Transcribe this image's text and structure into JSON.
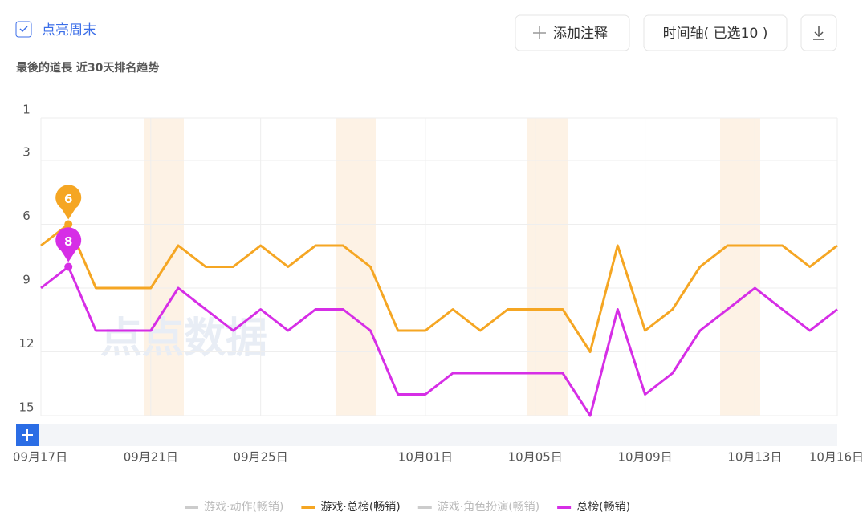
{
  "header": {
    "toggle": "点亮周末",
    "buttons": [
      "添加注释",
      "时间轴( 已选10 )"
    ]
  },
  "watermark": "点点数据",
  "chart_data": {
    "type": "line",
    "subtitle": "最後的道長 近30天排名趋势",
    "categories": [
      "09月17日",
      null,
      null,
      null,
      "09月21日",
      null,
      null,
      null,
      "09月25日",
      null,
      null,
      null,
      null,
      null,
      "10月01日",
      null,
      null,
      null,
      "10月05日",
      null,
      null,
      null,
      "10月09日",
      null,
      null,
      null,
      "10月13日",
      null,
      null,
      "10月16日"
    ],
    "series": [
      {
        "name": "游戏·动作(畅销)",
        "color": "#cccccc",
        "hidden": true,
        "values": [
          null,
          null,
          null,
          null,
          null,
          null,
          null,
          null,
          null,
          null,
          null,
          null,
          null,
          null,
          null,
          null,
          null,
          null,
          null,
          null,
          null,
          null,
          null,
          null,
          null,
          null,
          null,
          null,
          null,
          null
        ]
      },
      {
        "name": "游戏·总榜(畅销)",
        "color": "#f5a623",
        "values": [
          7,
          6,
          9,
          9,
          9,
          7,
          8,
          8,
          7,
          8,
          7,
          7,
          8,
          11,
          11,
          10,
          11,
          10,
          10,
          10,
          12,
          7,
          11,
          10,
          8,
          7,
          7,
          7,
          8,
          7
        ]
      },
      {
        "name": "游戏·角色扮演(畅销)",
        "color": "#cccccc",
        "hidden": true,
        "values": [
          null,
          null,
          null,
          null,
          null,
          null,
          null,
          null,
          null,
          null,
          null,
          null,
          null,
          null,
          null,
          null,
          null,
          null,
          null,
          null,
          null,
          null,
          null,
          null,
          null,
          null,
          null,
          null,
          null,
          null
        ]
      },
      {
        "name": "总榜(畅销)",
        "color": "#d62ee6",
        "values": [
          9,
          8,
          11,
          11,
          11,
          9,
          10,
          11,
          10,
          11,
          10,
          10,
          11,
          14,
          14,
          13,
          13,
          13,
          13,
          13,
          15,
          10,
          14,
          13,
          11,
          10,
          9,
          10,
          11,
          10
        ]
      }
    ],
    "ylim": [
      1,
      15
    ],
    "yticks": [
      1,
      3,
      6,
      9,
      12,
      15
    ],
    "y_inverted": true,
    "grid": true,
    "legend": "bottom"
  }
}
